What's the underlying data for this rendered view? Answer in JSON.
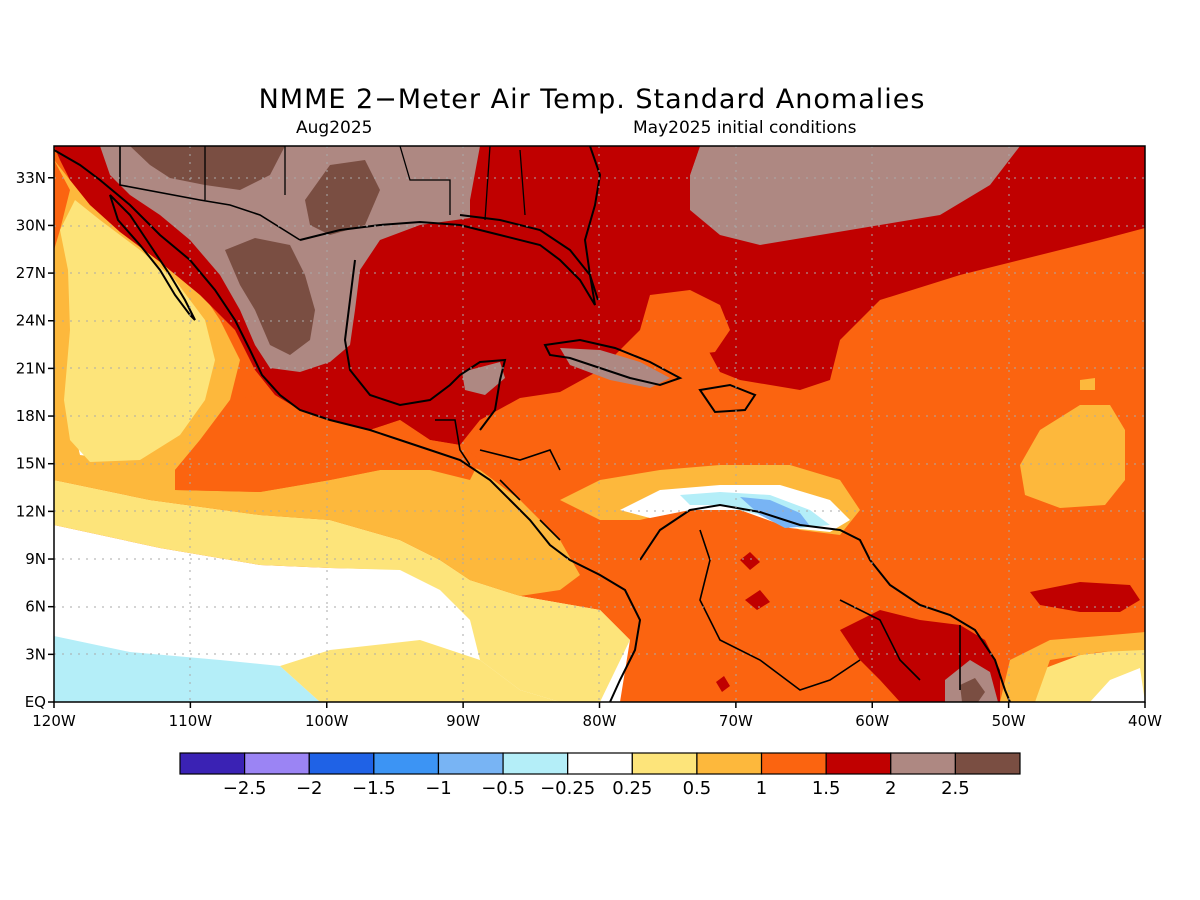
{
  "title": "NMME 2−Meter Air Temp. Standard Anomalies",
  "subtitle_left": "Aug2025",
  "subtitle_right": "May2025 initial conditions",
  "lon_ticks": [
    "120W",
    "110W",
    "100W",
    "90W",
    "80W",
    "70W",
    "60W",
    "50W",
    "40W"
  ],
  "lat_ticks": [
    "EQ",
    "3N",
    "6N",
    "9N",
    "12N",
    "15N",
    "18N",
    "21N",
    "24N",
    "27N",
    "30N",
    "33N"
  ],
  "colorbar": {
    "colors": [
      "#3a22b4",
      "#9b84f4",
      "#1f62e6",
      "#3c94f4",
      "#78b4f4",
      "#b4eef8",
      "#ffffff",
      "#fde47a",
      "#fdb83c",
      "#fb6410",
      "#c00000",
      "#ae8882",
      "#7a4e42"
    ],
    "labels": [
      "−2.5",
      "−2",
      "−1.5",
      "−1",
      "−0.5",
      "−0.25",
      "0.25",
      "0.5",
      "1",
      "1.5",
      "2",
      "2.5"
    ]
  },
  "palette": {
    "white": "#ffffff",
    "light_cyan": "#b4eef8",
    "light_blue": "#78b4f4",
    "blue": "#3c94f4",
    "yellow": "#fde47a",
    "light_orange": "#fdb83c",
    "orange": "#fb6410",
    "red": "#c00000",
    "brown_light": "#ae8882",
    "brown_dark": "#7a4e42"
  }
}
